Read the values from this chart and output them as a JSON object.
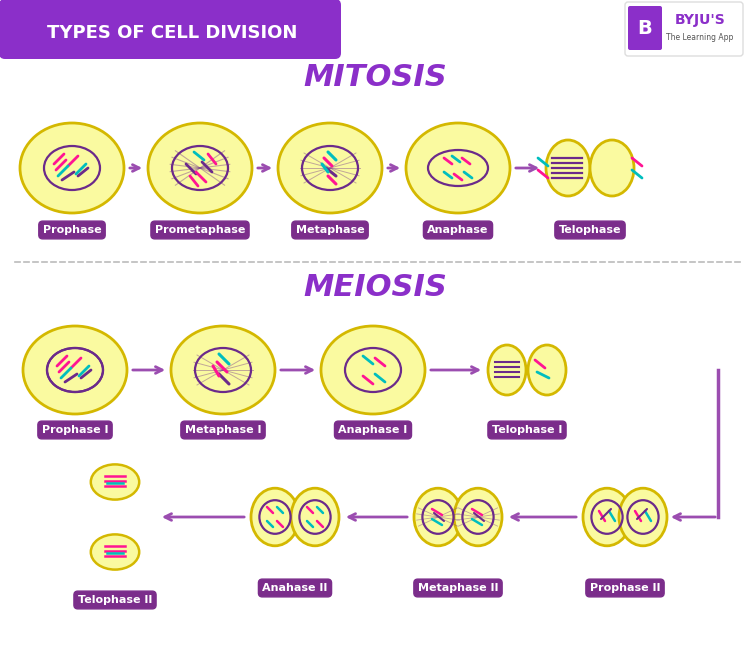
{
  "title": "TYPES OF CELL DIVISION",
  "title_bg_color": "#8B2FC9",
  "title_text_color": "#FFFFFF",
  "bg_color": "#FFFFFF",
  "mitosis_title": "MITOSIS",
  "meiosis_title": "MEIOSIS",
  "section_title_color": "#8B2FC9",
  "cell_fill": "#FAFAA0",
  "cell_border": "#D4B800",
  "nuclear_color": "#6B2A8B",
  "chrom_pink": "#FF1493",
  "chrom_teal": "#00BEBE",
  "arrow_color": "#9B4DB0",
  "label_bg": "#7B2D8B",
  "label_text": "#FFFFFF",
  "mitosis_labels": [
    "Prophase",
    "Prometaphase",
    "Metaphase",
    "Anaphase",
    "Telophase"
  ],
  "meiosis1_labels": [
    "Prophase I",
    "Metaphase I",
    "Anaphase I",
    "Telophase I"
  ],
  "meiosis2_labels": [
    "Prophase II",
    "Metaphase II",
    "Anahase II",
    "Telophase II"
  ],
  "divider_color": "#BBBBBB",
  "bracket_color": "#9B4DB0"
}
